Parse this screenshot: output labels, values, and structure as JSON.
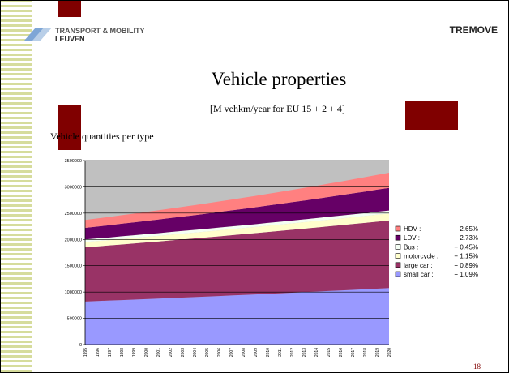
{
  "header": {
    "logo_line1": "TRANSPORT & MOBILITY",
    "logo_line2": "LEUVEN",
    "brand": "TREMOVE"
  },
  "page_number": "18",
  "chart_data": {
    "type": "stacked_area",
    "title": "Vehicle properties",
    "subtitle": "[M vehkm/year  for EU 15 + 2 + 4]",
    "caption": "Vehicle quantities per type",
    "categories": [
      "1995",
      "1996",
      "1997",
      "1998",
      "1999",
      "2000",
      "2001",
      "2002",
      "2003",
      "2004",
      "2005",
      "2006",
      "2007",
      "2008",
      "2009",
      "2010",
      "2011",
      "2012",
      "2013",
      "2014",
      "2015",
      "2016",
      "2017",
      "2018",
      "2019",
      "2020"
    ],
    "series": [
      {
        "name": "small car :",
        "growth_label": "+ 1.09%",
        "color": "#9999ff",
        "values": [
          820000,
          829000,
          838000,
          847000,
          856000,
          866000,
          875000,
          885000,
          894000,
          904000,
          914000,
          924000,
          934000,
          944000,
          954000,
          965000,
          975000,
          986000,
          997000,
          1008000,
          1019000,
          1030000,
          1041000,
          1052000,
          1064000,
          1075000
        ]
      },
      {
        "name": "large car :",
        "growth_label": "+ 0.89%",
        "color": "#993366",
        "values": [
          1030000,
          1039000,
          1048000,
          1058000,
          1067000,
          1077000,
          1086000,
          1096000,
          1106000,
          1115000,
          1125000,
          1135000,
          1146000,
          1156000,
          1166000,
          1176000,
          1187000,
          1197000,
          1208000,
          1219000,
          1230000,
          1241000,
          1252000,
          1263000,
          1274000,
          1285000
        ]
      },
      {
        "name": "motorcycle :",
        "growth_label": "+ 1.15%",
        "color": "#ffffcc",
        "values": [
          100000,
          101000,
          102000,
          104000,
          105000,
          106000,
          107000,
          108000,
          110000,
          111000,
          112000,
          114000,
          115000,
          116000,
          117000,
          119000,
          120000,
          122000,
          123000,
          124000,
          126000,
          127000,
          129000,
          130000,
          132000,
          133000
        ]
      },
      {
        "name": "Bus :",
        "growth_label": "+ 0.45%",
        "color": "#f4fff4",
        "values": [
          50000,
          50000,
          50000,
          51000,
          51000,
          51000,
          51000,
          52000,
          52000,
          52000,
          52000,
          53000,
          53000,
          53000,
          53000,
          54000,
          54000,
          54000,
          54000,
          54000,
          55000,
          55000,
          55000,
          55000,
          56000,
          56000
        ]
      },
      {
        "name": "LDV :",
        "growth_label": "+ 2.73%",
        "color": "#660066",
        "values": [
          220000,
          226000,
          232000,
          239000,
          245000,
          252000,
          259000,
          266000,
          273000,
          280000,
          288000,
          296000,
          304000,
          312000,
          321000,
          330000,
          339000,
          348000,
          357000,
          367000,
          377000,
          387000,
          398000,
          409000,
          420000,
          431000
        ]
      },
      {
        "name": "HDV :",
        "growth_label": "+ 2.65%",
        "color": "#ff8080",
        "values": [
          150000,
          154000,
          158000,
          162000,
          167000,
          171000,
          175000,
          180000,
          185000,
          190000,
          195000,
          200000,
          205000,
          211000,
          216000,
          222000,
          228000,
          234000,
          240000,
          247000,
          253000,
          260000,
          267000,
          274000,
          281000,
          288000
        ]
      }
    ],
    "ylim": [
      0,
      3500000
    ],
    "yticks": [
      0,
      500000,
      1000000,
      1500000,
      2000000,
      2500000,
      3000000,
      3500000
    ],
    "grid": true,
    "plot_background": "#c0c0c0",
    "legend": "right"
  }
}
